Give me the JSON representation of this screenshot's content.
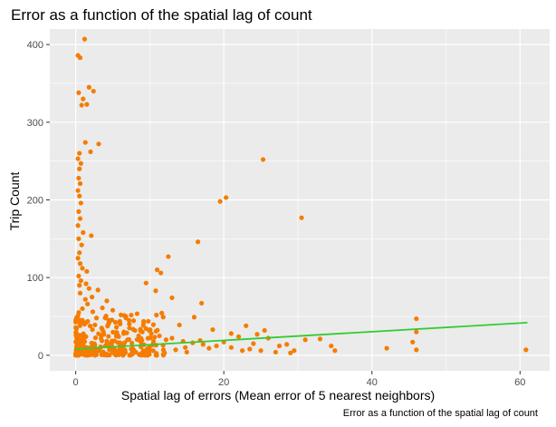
{
  "title": "Error as a function of the spatial lag of count",
  "caption": "Error as a function of the spatial lag of count",
  "colors": {
    "panel_background": "#EBEBEB",
    "grid": "#FFFFFF",
    "points": "#F57C00",
    "fit_line": "#33CC33",
    "tick_text": "#4D4D4D"
  },
  "chart_data": {
    "type": "scatter",
    "title": "Error as a function of the spatial lag of count",
    "xlabel": "Spatial lag of errors (Mean error of 5 nearest neighbors)",
    "ylabel": "Trip Count",
    "xlim": [
      -3.5,
      64
    ],
    "ylim": [
      -20,
      420
    ],
    "x_ticks": [
      0,
      20,
      40,
      60
    ],
    "y_ticks": [
      0,
      100,
      200,
      300,
      400
    ],
    "grid": true,
    "fit_line": {
      "x": [
        0,
        61
      ],
      "y": [
        8,
        42
      ]
    },
    "points": [
      [
        1.2,
        407
      ],
      [
        0.3,
        386
      ],
      [
        0.6,
        383
      ],
      [
        1.8,
        345
      ],
      [
        2.4,
        340
      ],
      [
        0.4,
        338
      ],
      [
        1.0,
        330
      ],
      [
        1.5,
        323
      ],
      [
        0.8,
        322
      ],
      [
        3.1,
        272
      ],
      [
        1.3,
        274
      ],
      [
        0.5,
        260
      ],
      [
        0.3,
        253
      ],
      [
        2.0,
        262
      ],
      [
        0.7,
        247
      ],
      [
        0.5,
        240
      ],
      [
        0.4,
        228
      ],
      [
        0.6,
        221
      ],
      [
        0.3,
        212
      ],
      [
        0.5,
        205
      ],
      [
        0.7,
        196
      ],
      [
        0.4,
        185
      ],
      [
        0.6,
        176
      ],
      [
        0.3,
        167
      ],
      [
        1.0,
        158
      ],
      [
        0.4,
        150
      ],
      [
        0.8,
        142
      ],
      [
        2.1,
        154
      ],
      [
        0.5,
        132
      ],
      [
        0.3,
        125
      ],
      [
        0.6,
        118
      ],
      [
        0.9,
        112
      ],
      [
        1.5,
        108
      ],
      [
        0.4,
        102
      ],
      [
        0.7,
        96
      ],
      [
        0.5,
        90
      ],
      [
        1.8,
        86
      ],
      [
        3.0,
        84
      ],
      [
        2.2,
        75
      ],
      [
        1.3,
        72
      ],
      [
        4.2,
        70
      ],
      [
        3.6,
        61
      ],
      [
        5.0,
        58
      ],
      [
        0.4,
        55
      ],
      [
        6.1,
        52
      ],
      [
        2.8,
        48
      ],
      [
        7.2,
        45
      ],
      [
        4.5,
        42
      ],
      [
        1.2,
        40
      ],
      [
        5.5,
        36
      ],
      [
        8.0,
        32
      ],
      [
        9.0,
        30
      ],
      [
        10.2,
        28
      ],
      [
        11.3,
        25
      ],
      [
        13.0,
        22
      ],
      [
        12.2,
        20
      ],
      [
        14.5,
        18
      ],
      [
        15.8,
        16
      ],
      [
        17.2,
        14
      ],
      [
        19.0,
        12
      ],
      [
        21.0,
        10
      ],
      [
        23.5,
        8
      ],
      [
        25.0,
        6
      ],
      [
        27.0,
        4
      ],
      [
        29.0,
        3
      ],
      [
        3.5,
        35
      ],
      [
        6.5,
        30
      ],
      [
        8.5,
        25
      ],
      [
        10.5,
        18
      ],
      [
        16.5,
        146
      ],
      [
        12.5,
        127
      ],
      [
        11.0,
        110
      ],
      [
        11.5,
        106
      ],
      [
        9.5,
        93
      ],
      [
        10.8,
        83
      ],
      [
        13.0,
        74
      ],
      [
        17.0,
        67
      ],
      [
        16.0,
        49
      ],
      [
        14.0,
        39
      ],
      [
        18.5,
        33
      ],
      [
        21.0,
        28
      ],
      [
        23.0,
        38
      ],
      [
        25.5,
        32
      ],
      [
        19.5,
        198
      ],
      [
        20.3,
        203
      ],
      [
        25.3,
        252
      ],
      [
        30.5,
        177
      ],
      [
        31.0,
        20
      ],
      [
        33.0,
        21
      ],
      [
        34.5,
        12
      ],
      [
        35.0,
        6
      ],
      [
        42.0,
        9
      ],
      [
        46.0,
        47
      ],
      [
        46.0,
        30
      ],
      [
        45.5,
        17
      ],
      [
        46.0,
        7
      ],
      [
        60.8,
        7
      ],
      [
        28.5,
        14
      ],
      [
        26.0,
        22
      ],
      [
        24.0,
        15
      ],
      [
        22.5,
        6
      ],
      [
        18.0,
        9
      ],
      [
        15.0,
        4
      ],
      [
        13.5,
        7
      ],
      [
        12.0,
        3
      ],
      [
        9.5,
        5
      ],
      [
        7.5,
        8
      ],
      [
        5.0,
        4
      ],
      [
        3.0,
        6
      ],
      [
        2.0,
        3
      ],
      [
        1.0,
        2
      ],
      [
        0.2,
        1
      ],
      [
        0.5,
        6
      ],
      [
        1.5,
        10
      ],
      [
        2.5,
        15
      ],
      [
        4.0,
        12
      ],
      [
        6.0,
        16
      ],
      [
        7.0,
        20
      ],
      [
        8.8,
        11
      ],
      [
        10.0,
        6
      ],
      [
        11.8,
        13
      ],
      [
        14.8,
        10
      ],
      [
        16.8,
        19
      ],
      [
        20.0,
        17
      ],
      [
        22.0,
        24
      ],
      [
        24.5,
        27
      ],
      [
        27.5,
        12
      ],
      [
        29.5,
        6
      ],
      [
        3.8,
        27
      ],
      [
        5.8,
        24
      ],
      [
        0.9,
        60
      ],
      [
        1.6,
        66
      ],
      [
        2.3,
        56
      ],
      [
        0.6,
        80
      ],
      [
        1.4,
        92
      ],
      [
        0.2,
        14
      ],
      [
        0.8,
        20
      ],
      [
        0.3,
        26
      ]
    ]
  }
}
